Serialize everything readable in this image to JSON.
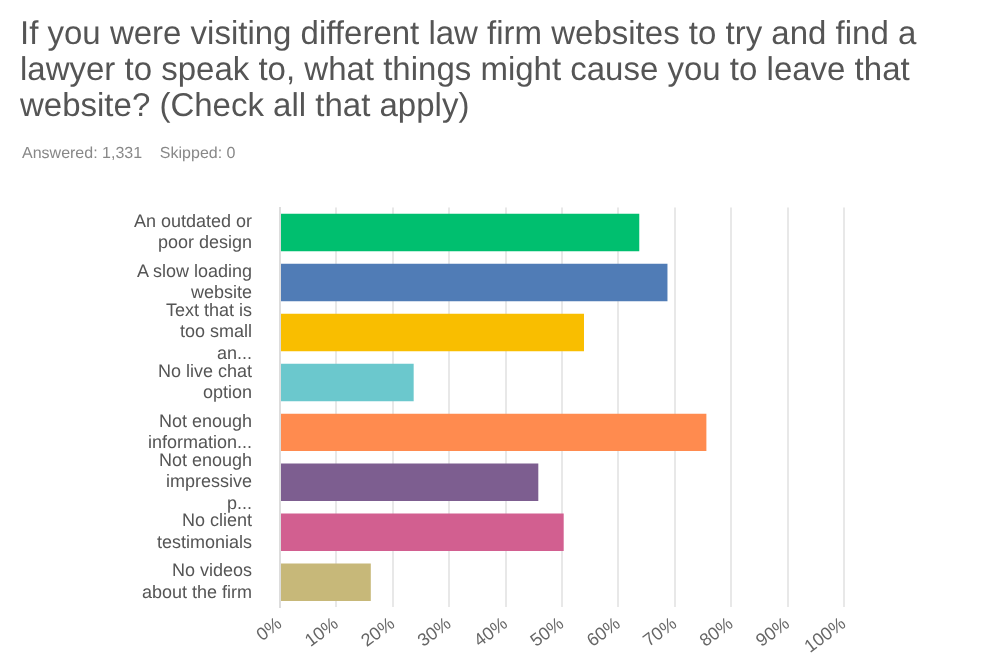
{
  "chart_data": {
    "type": "bar",
    "orientation": "horizontal",
    "title": "If you were visiting different law firm websites to try and find a lawyer to speak to, what things might cause you to leave that website? (Check all that apply)",
    "subtitle": "Answered: 1,331    Skipped: 0",
    "categories": [
      "An outdated or poor design",
      "A slow loading website",
      "Text that is too small an...",
      "No live chat option",
      "Not enough information...",
      "Not enough impressive p...",
      "No client testimonials",
      "No videos about the firm"
    ],
    "values": [
      63.7,
      68.7,
      53.9,
      23.7,
      75.6,
      45.8,
      50.3,
      16.1
    ],
    "colors": [
      "#00bf6f",
      "#507cb6",
      "#f9be00",
      "#6bc8cd",
      "#ff8b4f",
      "#7d5e90",
      "#d25f90",
      "#c7b879"
    ],
    "xlim": [
      0,
      100
    ],
    "xticks": [
      {
        "value": 0,
        "label": "0%"
      },
      {
        "value": 10,
        "label": "10%"
      },
      {
        "value": 20,
        "label": "20%"
      },
      {
        "value": 30,
        "label": "30%"
      },
      {
        "value": 40,
        "label": "40%"
      },
      {
        "value": 50,
        "label": "50%"
      },
      {
        "value": 60,
        "label": "60%"
      },
      {
        "value": 70,
        "label": "70%"
      },
      {
        "value": 80,
        "label": "80%"
      },
      {
        "value": 90,
        "label": "90%"
      },
      {
        "value": 100,
        "label": "100%"
      }
    ],
    "grid": "x",
    "legend": false
  }
}
